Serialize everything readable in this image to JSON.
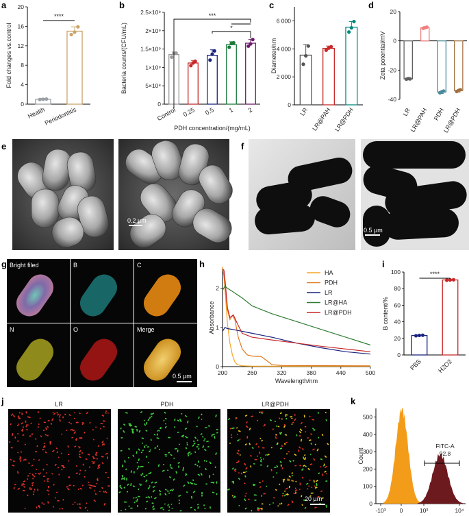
{
  "panel_labels": {
    "a": "a",
    "b": "b",
    "c": "c",
    "d": "d",
    "e": "e",
    "f": "f",
    "g": "g",
    "h": "h",
    "i": "i",
    "j": "j",
    "k": "k"
  },
  "chart_data": [
    {
      "id": "a",
      "type": "bar",
      "categories": [
        "Health",
        "Periodontitis"
      ],
      "values": [
        1.0,
        15.0
      ],
      "errors": [
        0.2,
        0.9
      ],
      "points": [
        [
          0.95,
          1.0,
          1.05
        ],
        [
          14.3,
          14.8,
          15.9
        ]
      ],
      "colors": [
        "#9aa0a6",
        "#c8a46a"
      ],
      "ylabel": "Fold changes vs.control",
      "ylim": [
        0,
        20
      ],
      "yticks": [
        "0",
        "4",
        "8",
        "12",
        "16",
        "20"
      ],
      "sig": "****"
    },
    {
      "id": "b",
      "type": "bar",
      "categories": [
        "Control",
        "0.25",
        "0.5",
        "1",
        "2"
      ],
      "values": [
        1350000000.0,
        1120000000.0,
        1330000000.0,
        1620000000.0,
        1660000000.0
      ],
      "errors": [
        70000000.0,
        70000000.0,
        150000000.0,
        80000000.0,
        100000000.0
      ],
      "points": [
        [
          1280000000.0,
          1380000000.0,
          1390000000.0
        ],
        [
          1050000000.0,
          1120000000.0,
          1170000000.0
        ],
        [
          1200000000.0,
          1360000000.0,
          1450000000.0
        ],
        [
          1550000000.0,
          1650000000.0,
          1670000000.0
        ],
        [
          1580000000.0,
          1640000000.0,
          1760000000.0
        ]
      ],
      "colors": [
        "#9a9a9a",
        "#c62828",
        "#1a237e",
        "#1b7a3a",
        "#6a1b6a"
      ],
      "ylabel": "Bacteria counts/(CFU/mL)",
      "xlabel": "PDH concentration/(mg/mL)",
      "ylim": [
        0,
        2500000000.0
      ],
      "yticks": [
        "0",
        "5×10⁸",
        "1×10⁹",
        "1.5×10⁹",
        "2×10⁹",
        "2.5×10⁹"
      ],
      "sig": [
        "***",
        "*"
      ]
    },
    {
      "id": "c",
      "type": "bar",
      "categories": [
        "LR",
        "LR@PAH",
        "LR@PDH"
      ],
      "values": [
        3550,
        4030,
        5550
      ],
      "errors": [
        750,
        170,
        400
      ],
      "points": [
        [
          2900,
          3500,
          4200
        ],
        [
          3900,
          4050,
          4150
        ],
        [
          5200,
          5500,
          5950
        ]
      ],
      "colors": [
        "#555555",
        "#c62828",
        "#00897b"
      ],
      "ylabel": "Diameter/nm",
      "ylim": [
        0,
        7000
      ],
      "yticks": [
        "0",
        "2 000",
        "4 000",
        "6 000"
      ]
    },
    {
      "id": "d",
      "type": "bar",
      "categories": [
        "LR",
        "LR@PAH",
        "PDH",
        "LR@PDH"
      ],
      "values": [
        -26,
        9,
        -35,
        -34
      ],
      "errors": [
        0.5,
        0.8,
        1,
        1
      ],
      "points": [
        [
          -26.2,
          -25.8,
          -26
        ],
        [
          8.6,
          9,
          9.4
        ],
        [
          -35.5,
          -34.8,
          -34.3
        ],
        [
          -34.6,
          -33.9,
          -33.4
        ]
      ],
      "colors": [
        "#606060",
        "#f08080",
        "#4a8a9a",
        "#a07040"
      ],
      "ylabel": "Zeta potential/mV",
      "ylim": [
        -40,
        20
      ],
      "yticks": [
        "-40",
        "-20",
        "0",
        "20"
      ]
    },
    {
      "id": "h",
      "type": "line",
      "xlabel": "Wavelength/nm",
      "ylabel": "Absorbance",
      "xlim": [
        200,
        500
      ],
      "ylim": [
        0,
        2.5
      ],
      "xticks": [
        "200",
        "260",
        "320",
        "380",
        "440",
        "500"
      ],
      "yticks": [
        "0",
        "1",
        "2"
      ],
      "series": [
        {
          "name": "HA",
          "color": "#f5a623",
          "x": [
            200,
            203,
            206,
            210,
            215,
            220,
            225,
            230,
            240,
            260,
            300,
            500
          ],
          "y": [
            2.55,
            2.3,
            1.8,
            1.1,
            0.6,
            0.3,
            0.12,
            0.05,
            0.02,
            0.01,
            0.01,
            0.01
          ]
        },
        {
          "name": "PDH",
          "color": "#e07b24",
          "x": [
            200,
            203,
            206,
            210,
            215,
            220,
            225,
            232,
            240,
            250,
            260,
            270,
            278,
            290,
            300,
            320,
            500
          ],
          "y": [
            2.5,
            2.3,
            1.9,
            1.45,
            1.2,
            1.3,
            1.2,
            0.75,
            0.45,
            0.3,
            0.27,
            0.26,
            0.26,
            0.15,
            0.05,
            0.03,
            0.02
          ]
        },
        {
          "name": "LR",
          "color": "#1a237e",
          "x": [
            200,
            205,
            210,
            220,
            240,
            260,
            300,
            350,
            400,
            450,
            500
          ],
          "y": [
            0.9,
            1.0,
            0.97,
            0.95,
            0.9,
            0.85,
            0.75,
            0.6,
            0.48,
            0.38,
            0.32
          ]
        },
        {
          "name": "LR@HA",
          "color": "#2e7d32",
          "x": [
            200,
            205,
            210,
            220,
            240,
            260,
            280,
            300,
            350,
            400,
            450,
            500
          ],
          "y": [
            1.95,
            2.05,
            2.0,
            1.92,
            1.75,
            1.55,
            1.45,
            1.35,
            1.15,
            0.95,
            0.75,
            0.55
          ]
        },
        {
          "name": "LR@PDH",
          "color": "#c62828",
          "x": [
            200,
            203,
            206,
            210,
            215,
            222,
            230,
            240,
            260,
            300,
            350,
            400,
            450,
            500
          ],
          "y": [
            2.5,
            2.45,
            2.1,
            1.5,
            1.25,
            1.32,
            1.1,
            0.85,
            0.75,
            0.68,
            0.6,
            0.52,
            0.45,
            0.38
          ]
        }
      ]
    },
    {
      "id": "i",
      "type": "bar",
      "categories": [
        "PBS",
        "H2O2"
      ],
      "values": [
        23.5,
        90.5
      ],
      "errors": [
        0.5,
        0.5
      ],
      "points": [
        [
          23.2,
          23.6,
          23.8
        ],
        [
          90.2,
          90.5,
          90.7
        ]
      ],
      "colors": [
        "#1a237e",
        "#c62828"
      ],
      "ylabel": "B content/%",
      "ylim": [
        0,
        100
      ],
      "yticks": [
        "0",
        "20",
        "40",
        "60",
        "80",
        "100"
      ],
      "sig": "****"
    },
    {
      "id": "k",
      "type": "area",
      "xlabel": "",
      "ylabel": "Count",
      "ylim": [
        0,
        550
      ],
      "yticks": [
        "0",
        "100",
        "200",
        "300",
        "400",
        "500"
      ],
      "xticks": [
        "-10³",
        "0",
        "10³",
        "10⁴"
      ],
      "gate_label": "FITC-A",
      "gate_value": "92.8",
      "series": [
        {
          "name": "",
          "color": "#f39c1a"
        },
        {
          "name": "",
          "color": "#6d1a1f"
        }
      ]
    }
  ],
  "images": {
    "e": {
      "scale": "0.2 µm"
    },
    "f": {
      "scale": "0.5 µm"
    },
    "g": {
      "tiles": [
        "Bright filed",
        "B",
        "C",
        "N",
        "O",
        "Merge"
      ],
      "scale": "0.5 µm"
    },
    "j": {
      "titles": [
        "LR",
        "PDH",
        "LR@PDH"
      ],
      "scale": "20 µm"
    }
  },
  "colors": {
    "bright": "#6b5a8a",
    "B": "#27a7a9",
    "C": "#e88a12",
    "N": "#c9c325",
    "O": "#d11a1a",
    "Merge": "#e0b020",
    "red": "#e0322a",
    "green": "#3fcf3f"
  }
}
